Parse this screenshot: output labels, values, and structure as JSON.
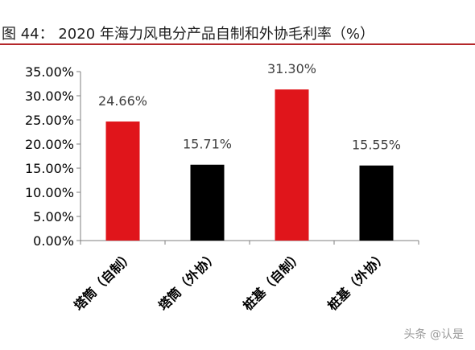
{
  "title": "图 44：  2020 年海力风电分产品自制和外协毛利率（%）",
  "watermark": "头条 @认是",
  "colors": {
    "red": "#e0151b",
    "black": "#000000",
    "title_rule": "#b4272a",
    "axis": "#7f7f7f"
  },
  "chart_data": {
    "type": "bar",
    "categories": [
      "塔筒（自制）",
      "塔筒（外协）",
      "桩基（自制）",
      "桩基（外协）"
    ],
    "values": [
      24.66,
      15.71,
      31.3,
      15.55
    ],
    "data_labels": [
      "24.66%",
      "15.71%",
      "31.30%",
      "15.55%"
    ],
    "bar_colors": [
      "#e0151b",
      "#000000",
      "#e0151b",
      "#000000"
    ],
    "ylim": [
      0,
      35
    ],
    "yticks": [
      0,
      5,
      10,
      15,
      20,
      25,
      30,
      35
    ],
    "ytick_labels": [
      "0.00%",
      "5.00%",
      "10.00%",
      "15.00%",
      "20.00%",
      "25.00%",
      "30.00%",
      "35.00%"
    ],
    "grid": false,
    "title": "",
    "xlabel": "",
    "ylabel": ""
  }
}
